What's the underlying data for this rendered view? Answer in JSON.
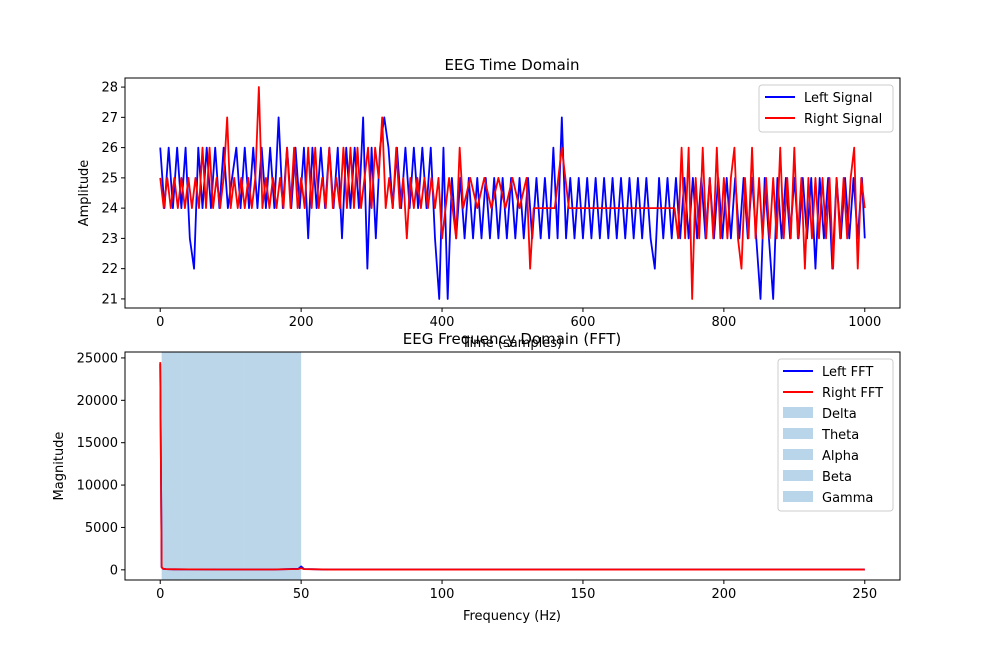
{
  "chart_data": [
    {
      "type": "line",
      "title": "EEG Time Domain",
      "xlabel": "Time (samples)",
      "ylabel": "Amplitude",
      "xlim": [
        -50,
        1050
      ],
      "ylim": [
        20.7,
        28.3
      ],
      "xticks": [
        0,
        200,
        400,
        600,
        800,
        1000
      ],
      "yticks": [
        21,
        22,
        23,
        24,
        25,
        26,
        27,
        28
      ],
      "legend_position": "top-right",
      "series": [
        {
          "name": "Left Signal",
          "color": "#0000ff",
          "x": [
            0,
            6,
            12,
            18,
            24,
            30,
            36,
            42,
            48,
            54,
            60,
            66,
            72,
            78,
            84,
            90,
            96,
            102,
            108,
            114,
            120,
            126,
            132,
            138,
            144,
            150,
            156,
            162,
            168,
            174,
            180,
            186,
            192,
            198,
            204,
            210,
            216,
            222,
            228,
            234,
            240,
            246,
            252,
            258,
            264,
            270,
            276,
            282,
            288,
            294,
            300,
            306,
            312,
            318,
            324,
            330,
            336,
            342,
            348,
            354,
            360,
            366,
            372,
            378,
            384,
            390,
            396,
            402,
            408,
            414,
            420,
            426,
            432,
            438,
            444,
            450,
            456,
            462,
            468,
            474,
            480,
            486,
            492,
            498,
            504,
            510,
            516,
            522,
            528,
            534,
            540,
            546,
            552,
            558,
            564,
            570,
            576,
            582,
            588,
            594,
            600,
            606,
            612,
            618,
            624,
            630,
            636,
            642,
            648,
            654,
            660,
            666,
            672,
            678,
            684,
            690,
            696,
            702,
            708,
            714,
            720,
            726,
            732,
            738,
            744,
            750,
            756,
            762,
            768,
            774,
            780,
            786,
            792,
            798,
            804,
            810,
            816,
            822,
            828,
            834,
            840,
            846,
            852,
            858,
            864,
            870,
            876,
            882,
            888,
            894,
            900,
            906,
            912,
            918,
            924,
            930,
            936,
            942,
            948,
            954,
            960,
            966,
            972,
            978,
            984,
            990,
            996,
            1000
          ],
          "values": [
            26,
            24,
            26,
            24,
            26,
            24,
            26,
            23,
            22,
            26,
            24,
            26,
            24,
            26,
            24,
            26,
            24,
            25,
            26,
            24,
            26,
            24,
            26,
            24,
            26,
            24,
            26,
            24,
            27,
            24,
            26,
            24,
            26,
            24,
            26,
            23,
            26,
            24,
            26,
            24,
            26,
            24,
            26,
            23,
            26,
            24,
            26,
            24,
            27,
            22,
            26,
            23,
            26,
            27,
            26,
            24,
            26,
            24,
            26,
            24,
            26,
            24,
            26,
            24,
            26,
            23,
            21,
            26,
            21,
            25,
            23,
            25,
            23,
            25,
            23,
            25,
            23,
            25,
            23,
            25,
            23,
            25,
            23,
            25,
            23,
            25,
            23,
            25,
            23,
            25,
            23,
            25,
            23,
            26,
            23,
            27,
            23,
            25,
            23,
            25,
            23,
            25,
            23,
            25,
            23,
            25,
            23,
            25,
            23,
            25,
            23,
            25,
            23,
            25,
            23,
            25,
            23,
            22,
            25,
            23,
            25,
            23,
            25,
            23,
            25,
            23,
            25,
            23,
            25,
            23,
            25,
            23,
            25,
            23,
            25,
            23,
            25,
            23,
            25,
            23,
            25,
            23,
            21,
            25,
            23,
            21,
            25,
            23,
            25,
            23,
            25,
            23,
            25,
            23,
            25,
            22,
            25,
            23,
            25,
            22,
            25,
            23,
            25,
            23,
            25,
            23,
            25,
            23
          ]
        },
        {
          "name": "Right Signal",
          "color": "#ff0000",
          "x": [
            0,
            5,
            10,
            15,
            20,
            25,
            30,
            35,
            40,
            45,
            50,
            55,
            60,
            65,
            70,
            75,
            80,
            85,
            90,
            95,
            100,
            105,
            110,
            115,
            120,
            125,
            130,
            135,
            140,
            145,
            150,
            155,
            160,
            165,
            170,
            175,
            180,
            185,
            190,
            195,
            200,
            205,
            210,
            215,
            220,
            225,
            230,
            235,
            240,
            245,
            250,
            255,
            260,
            265,
            270,
            275,
            280,
            285,
            290,
            295,
            300,
            305,
            310,
            315,
            320,
            325,
            330,
            335,
            340,
            345,
            350,
            355,
            360,
            365,
            370,
            375,
            380,
            385,
            390,
            395,
            400,
            410,
            420,
            425,
            430,
            440,
            450,
            460,
            470,
            480,
            490,
            500,
            510,
            520,
            525,
            530,
            540,
            550,
            560,
            570,
            580,
            590,
            600,
            610,
            620,
            630,
            640,
            650,
            660,
            670,
            680,
            690,
            700,
            710,
            720,
            730,
            735,
            740,
            745,
            750,
            755,
            760,
            765,
            770,
            775,
            780,
            785,
            790,
            795,
            800,
            805,
            810,
            815,
            820,
            825,
            830,
            835,
            840,
            845,
            850,
            855,
            860,
            865,
            870,
            875,
            880,
            885,
            890,
            895,
            900,
            905,
            910,
            915,
            920,
            925,
            930,
            935,
            940,
            945,
            950,
            955,
            960,
            965,
            970,
            975,
            980,
            985,
            990,
            995,
            1000
          ],
          "values": [
            25,
            24,
            25,
            24,
            25,
            24,
            25,
            24,
            25,
            24,
            25,
            24,
            26,
            24,
            26,
            24,
            25,
            24,
            25,
            27,
            24,
            25,
            24,
            25,
            24,
            25,
            24,
            25,
            28,
            24,
            25,
            24,
            25,
            24,
            25,
            24,
            26,
            24,
            26,
            24,
            25,
            24,
            26,
            24,
            26,
            24,
            25,
            24,
            26,
            24,
            25,
            24,
            26,
            24,
            26,
            24,
            26,
            24,
            25,
            26,
            24,
            26,
            25,
            27,
            24,
            25,
            24,
            26,
            24,
            25,
            23,
            25,
            24,
            25,
            24,
            25,
            24,
            25,
            24,
            25,
            23,
            25,
            23,
            26,
            24,
            25,
            24,
            25,
            24,
            25,
            24,
            25,
            24,
            25,
            22,
            24,
            24,
            24,
            24,
            26,
            24,
            24,
            24,
            24,
            24,
            24,
            24,
            24,
            24,
            24,
            24,
            24,
            24,
            24,
            24,
            24,
            23,
            26,
            23,
            26,
            21,
            25,
            23,
            26,
            23,
            25,
            23,
            26,
            23,
            25,
            23,
            25,
            26,
            23,
            22,
            25,
            23,
            26,
            23,
            25,
            23,
            25,
            23,
            25,
            23,
            26,
            23,
            25,
            23,
            26,
            23,
            25,
            22,
            25,
            23,
            25,
            23,
            25,
            23,
            25,
            22,
            25,
            23,
            25,
            23,
            25,
            26,
            22,
            25,
            24
          ]
        }
      ]
    },
    {
      "type": "line",
      "title": "EEG Frequency Domain (FFT)",
      "xlabel": "Frequency (Hz)",
      "ylabel": "Magnitude",
      "xlim": [
        -12.5,
        262.5
      ],
      "ylim": [
        -1200,
        25700
      ],
      "xticks": [
        0,
        50,
        100,
        150,
        200,
        250
      ],
      "yticks": [
        0,
        5000,
        10000,
        15000,
        20000,
        25000
      ],
      "legend_position": "top-right",
      "series": [
        {
          "name": "Left FFT",
          "color": "#0000ff",
          "x": [
            0,
            0.5,
            1,
            2,
            5,
            10,
            20,
            30,
            40,
            49,
            50,
            51,
            60,
            80,
            100,
            150,
            200,
            250
          ],
          "values": [
            24300,
            300,
            120,
            80,
            60,
            50,
            40,
            40,
            40,
            120,
            400,
            100,
            30,
            30,
            30,
            30,
            30,
            30
          ]
        },
        {
          "name": "Right FFT",
          "color": "#ff0000",
          "x": [
            0,
            0.5,
            1,
            2,
            5,
            10,
            20,
            30,
            40,
            49,
            50,
            51,
            60,
            80,
            100,
            150,
            200,
            250
          ],
          "values": [
            24500,
            320,
            130,
            80,
            60,
            50,
            40,
            40,
            40,
            100,
            200,
            80,
            30,
            30,
            30,
            30,
            30,
            30
          ]
        }
      ],
      "bands": [
        {
          "name": "Delta",
          "range": [
            0.5,
            4
          ],
          "color": "#1f77b4",
          "alpha": 0.3
        },
        {
          "name": "Theta",
          "range": [
            4,
            8
          ],
          "color": "#1f77b4",
          "alpha": 0.3
        },
        {
          "name": "Alpha",
          "range": [
            8,
            13
          ],
          "color": "#1f77b4",
          "alpha": 0.3
        },
        {
          "name": "Beta",
          "range": [
            13,
            30
          ],
          "color": "#1f77b4",
          "alpha": 0.3
        },
        {
          "name": "Gamma",
          "range": [
            30,
            50
          ],
          "color": "#1f77b4",
          "alpha": 0.3
        }
      ]
    }
  ]
}
